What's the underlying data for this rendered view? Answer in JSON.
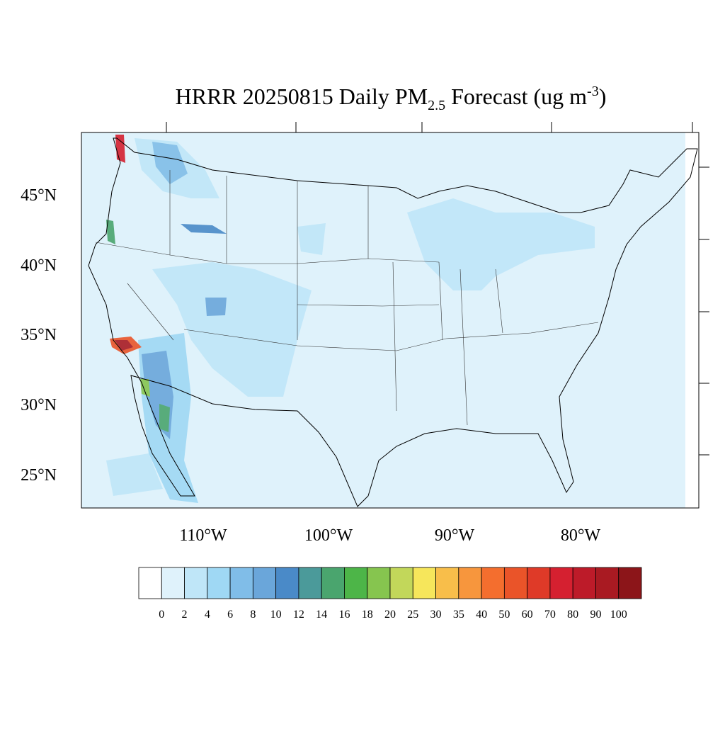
{
  "header": {
    "title": {
      "main": "HRRR 20250815 Daily PM",
      "sub": "2.5",
      "mid": " Forecast (ug m",
      "sup": "-3",
      "end": ")"
    }
  },
  "map": {
    "lat_labels": [
      "45°N",
      "40°N",
      "35°N",
      "30°N",
      "25°N"
    ],
    "lon_labels": [
      "110°W",
      "100°W",
      "90°W",
      "80°W"
    ]
  },
  "colorbar": {
    "levels": [
      0,
      2,
      4,
      6,
      8,
      10,
      12,
      14,
      16,
      18,
      20,
      25,
      30,
      35,
      40,
      50,
      60,
      70,
      80,
      90,
      100
    ],
    "colors": [
      "#ffffff",
      "#dff2fb",
      "#bfe6f8",
      "#9fd8f4",
      "#80bde8",
      "#6aa6da",
      "#4a8ac8",
      "#4b9a9a",
      "#4aa56e",
      "#4db548",
      "#86c54f",
      "#c2d75a",
      "#f6e65b",
      "#f8be4a",
      "#f7963d",
      "#f46e2e",
      "#ea5429",
      "#df3a28",
      "#d52030",
      "#bd1b29",
      "#a91a22",
      "#8c1519"
    ]
  }
}
